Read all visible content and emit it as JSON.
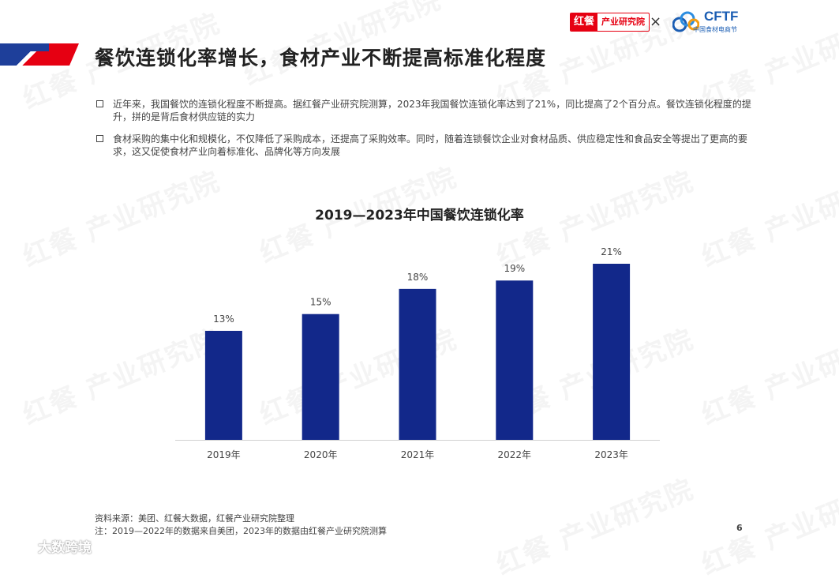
{
  "header": {
    "title": "餐饮连锁化率增长，食材产业不断提高标准化程度",
    "logo_primary_mark": "红餐",
    "logo_primary_text": "产业研究院",
    "logo_separator": "×",
    "logo_secondary_name": "CFTF",
    "logo_secondary_sub": "中国食材电商节",
    "accent_red": "#e60012",
    "accent_blue": "#1e3f9a"
  },
  "bullets": [
    "近年来，我国餐饮的连锁化程度不断提高。据红餐产业研究院测算，2023年我国餐饮连锁化率达到了21%，同比提高了2个百分点。餐饮连锁化程度的提升，拼的是背后食材供应链的实力",
    "食材采购的集中化和规模化，不仅降低了采购成本，还提高了采购效率。同时，随着连锁餐饮企业对食材品质、供应稳定性和食品安全等提出了更高的要求，这又促使食材产业向着标准化、品牌化等方向发展"
  ],
  "chart_data": {
    "type": "bar",
    "title": "2019—2023年中国餐饮连锁化率",
    "categories": [
      "2019年",
      "2020年",
      "2021年",
      "2022年",
      "2023年"
    ],
    "values": [
      13,
      15,
      18,
      19,
      21
    ],
    "data_labels": [
      "13%",
      "15%",
      "18%",
      "19%",
      "21%"
    ],
    "unit": "%",
    "ylim": [
      0,
      21.5
    ],
    "bar_color": "#12288a",
    "grid": false,
    "xlabel": "",
    "ylabel": ""
  },
  "footer": {
    "source": "资料来源：美团、红餐大数据，红餐产业研究院整理",
    "note": "注：2019—2022年的数据来自美团，2023年的数据由红餐产业研究院测算",
    "page_number": "6",
    "brand": "大数跨境"
  },
  "watermark_text": "红餐 产业研究院"
}
